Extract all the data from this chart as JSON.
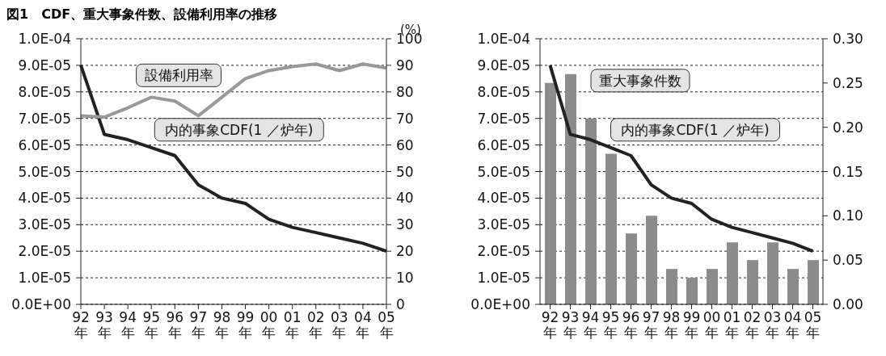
{
  "chart_data": [
    {
      "type": "line",
      "title": "図1　CDF、重大事象件数、設備利用率の推移",
      "y2label": "(%)",
      "categories": [
        "92年",
        "93年",
        "94年",
        "95年",
        "96年",
        "97年",
        "98年",
        "99年",
        "00年",
        "01年",
        "02年",
        "03年",
        "04年",
        "05年"
      ],
      "series": [
        {
          "name": "内的事象CDF(1 ／炉年)",
          "color": "#222222",
          "values": [
            9e-05,
            6.4e-05,
            6.2e-05,
            5.9e-05,
            5.6e-05,
            4.5e-05,
            4e-05,
            3.8e-05,
            3.2e-05,
            2.9e-05,
            2.7e-05,
            2.5e-05,
            2.3e-05,
            2e-05
          ]
        },
        {
          "name": "設備利用率",
          "axis": "y2",
          "color": "#999999",
          "values": [
            71,
            70.5,
            74,
            78,
            76.5,
            71,
            78,
            85,
            88,
            89.5,
            90.5,
            88,
            90.5,
            89
          ]
        }
      ],
      "ylim": [
        0,
        0.0001
      ],
      "yticks": [
        {
          "value": 0,
          "label": "0.0E+00"
        },
        {
          "value": 1e-05,
          "label": "1.0E-05"
        },
        {
          "value": 2e-05,
          "label": "2.0E-05"
        },
        {
          "value": 3e-05,
          "label": "3.0E-05"
        },
        {
          "value": 4e-05,
          "label": "4.0E-05"
        },
        {
          "value": 5e-05,
          "label": "5.0E-05"
        },
        {
          "value": 6e-05,
          "label": "6.0E-05"
        },
        {
          "value": 7e-05,
          "label": "7.0E-05"
        },
        {
          "value": 8e-05,
          "label": "8.0E-05"
        },
        {
          "value": 9e-05,
          "label": "9.0E-05"
        },
        {
          "value": 0.0001,
          "label": "1.0E-04"
        }
      ],
      "y2lim": [
        0,
        100
      ],
      "y2ticks": [
        0,
        10,
        20,
        30,
        40,
        50,
        60,
        70,
        80,
        90,
        100
      ],
      "grid": "y",
      "legend": false,
      "marker": "none"
    },
    {
      "type": "bar",
      "categories": [
        "92年",
        "93年",
        "94年",
        "95年",
        "96年",
        "97年",
        "98年",
        "99年",
        "00年",
        "01年",
        "02年",
        "03年",
        "04年",
        "05年"
      ],
      "series": [
        {
          "name": "重大事象件数",
          "axis": "y2",
          "color": "#8c8c8c",
          "values": [
            0.25,
            0.26,
            0.21,
            0.17,
            0.08,
            0.1,
            0.04,
            0.03,
            0.04,
            0.07,
            0.05,
            0.07,
            0.04,
            0.05
          ]
        },
        {
          "name": "内的事象CDF(1 ／炉年)",
          "type": "line",
          "color": "#222222",
          "values": [
            9e-05,
            6.4e-05,
            6.2e-05,
            5.9e-05,
            5.6e-05,
            4.5e-05,
            4e-05,
            3.8e-05,
            3.2e-05,
            2.9e-05,
            2.7e-05,
            2.5e-05,
            2.3e-05,
            2e-05
          ]
        }
      ],
      "ylim": [
        0,
        0.0001
      ],
      "yticks": [
        {
          "value": 0,
          "label": "0.0E+00"
        },
        {
          "value": 1e-05,
          "label": "1.0E-05"
        },
        {
          "value": 2e-05,
          "label": "2.0E-05"
        },
        {
          "value": 3e-05,
          "label": "3.0E-05"
        },
        {
          "value": 4e-05,
          "label": "4.0E-05"
        },
        {
          "value": 5e-05,
          "label": "5.0E-05"
        },
        {
          "value": 6e-05,
          "label": "6.0E-05"
        },
        {
          "value": 7e-05,
          "label": "7.0E-05"
        },
        {
          "value": 8e-05,
          "label": "8.0E-05"
        },
        {
          "value": 9e-05,
          "label": "9.0E-05"
        },
        {
          "value": 0.0001,
          "label": "1.0E-04"
        }
      ],
      "y2lim": [
        0,
        0.3
      ],
      "y2ticks": [
        {
          "value": 0,
          "label": "0.00"
        },
        {
          "value": 0.05,
          "label": "0.05"
        },
        {
          "value": 0.1,
          "label": "0.10"
        },
        {
          "value": 0.15,
          "label": "0.15"
        },
        {
          "value": 0.2,
          "label": "0.20"
        },
        {
          "value": 0.25,
          "label": "0.25"
        },
        {
          "value": 0.3,
          "label": "0.30"
        }
      ],
      "grid": "y",
      "legend": false,
      "marker": "none"
    }
  ]
}
